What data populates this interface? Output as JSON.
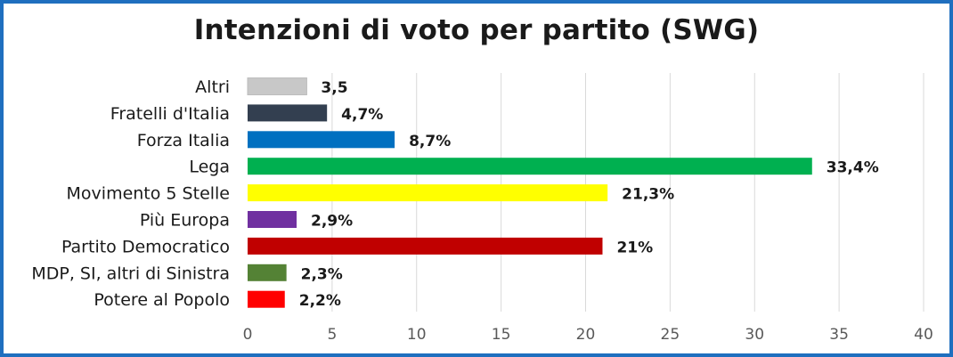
{
  "chart_data": {
    "type": "bar",
    "orientation": "horizontal",
    "title": "Intenzioni di voto per partito (SWG)",
    "categories": [
      "Altri",
      "Fratelli d'Italia",
      "Forza Italia",
      "Lega",
      "Movimento 5 Stelle",
      "Più Europa",
      "Partito Democratico",
      "MDP, SI, altri di Sinistra",
      "Potere al Popolo"
    ],
    "values": [
      3.5,
      4.7,
      8.7,
      33.4,
      21.3,
      2.9,
      21,
      2.3,
      2.2
    ],
    "data_labels": [
      "3,5",
      "4,7%",
      "8,7%",
      "33,4%",
      "21,3%",
      "2,9%",
      "21%",
      "2,3%",
      "2,2%"
    ],
    "colors": [
      "#c8c8c8",
      "#333f50",
      "#0070c0",
      "#00b050",
      "#ffff00",
      "#7030a0",
      "#c00000",
      "#548235",
      "#ff0000"
    ],
    "xlabel": "",
    "ylabel": "",
    "xlim": [
      0,
      40
    ],
    "xticks": [
      0,
      5,
      10,
      15,
      20,
      25,
      30,
      35,
      40
    ],
    "grid": true,
    "legend": "none",
    "frame_color": "#1f6fbf"
  }
}
